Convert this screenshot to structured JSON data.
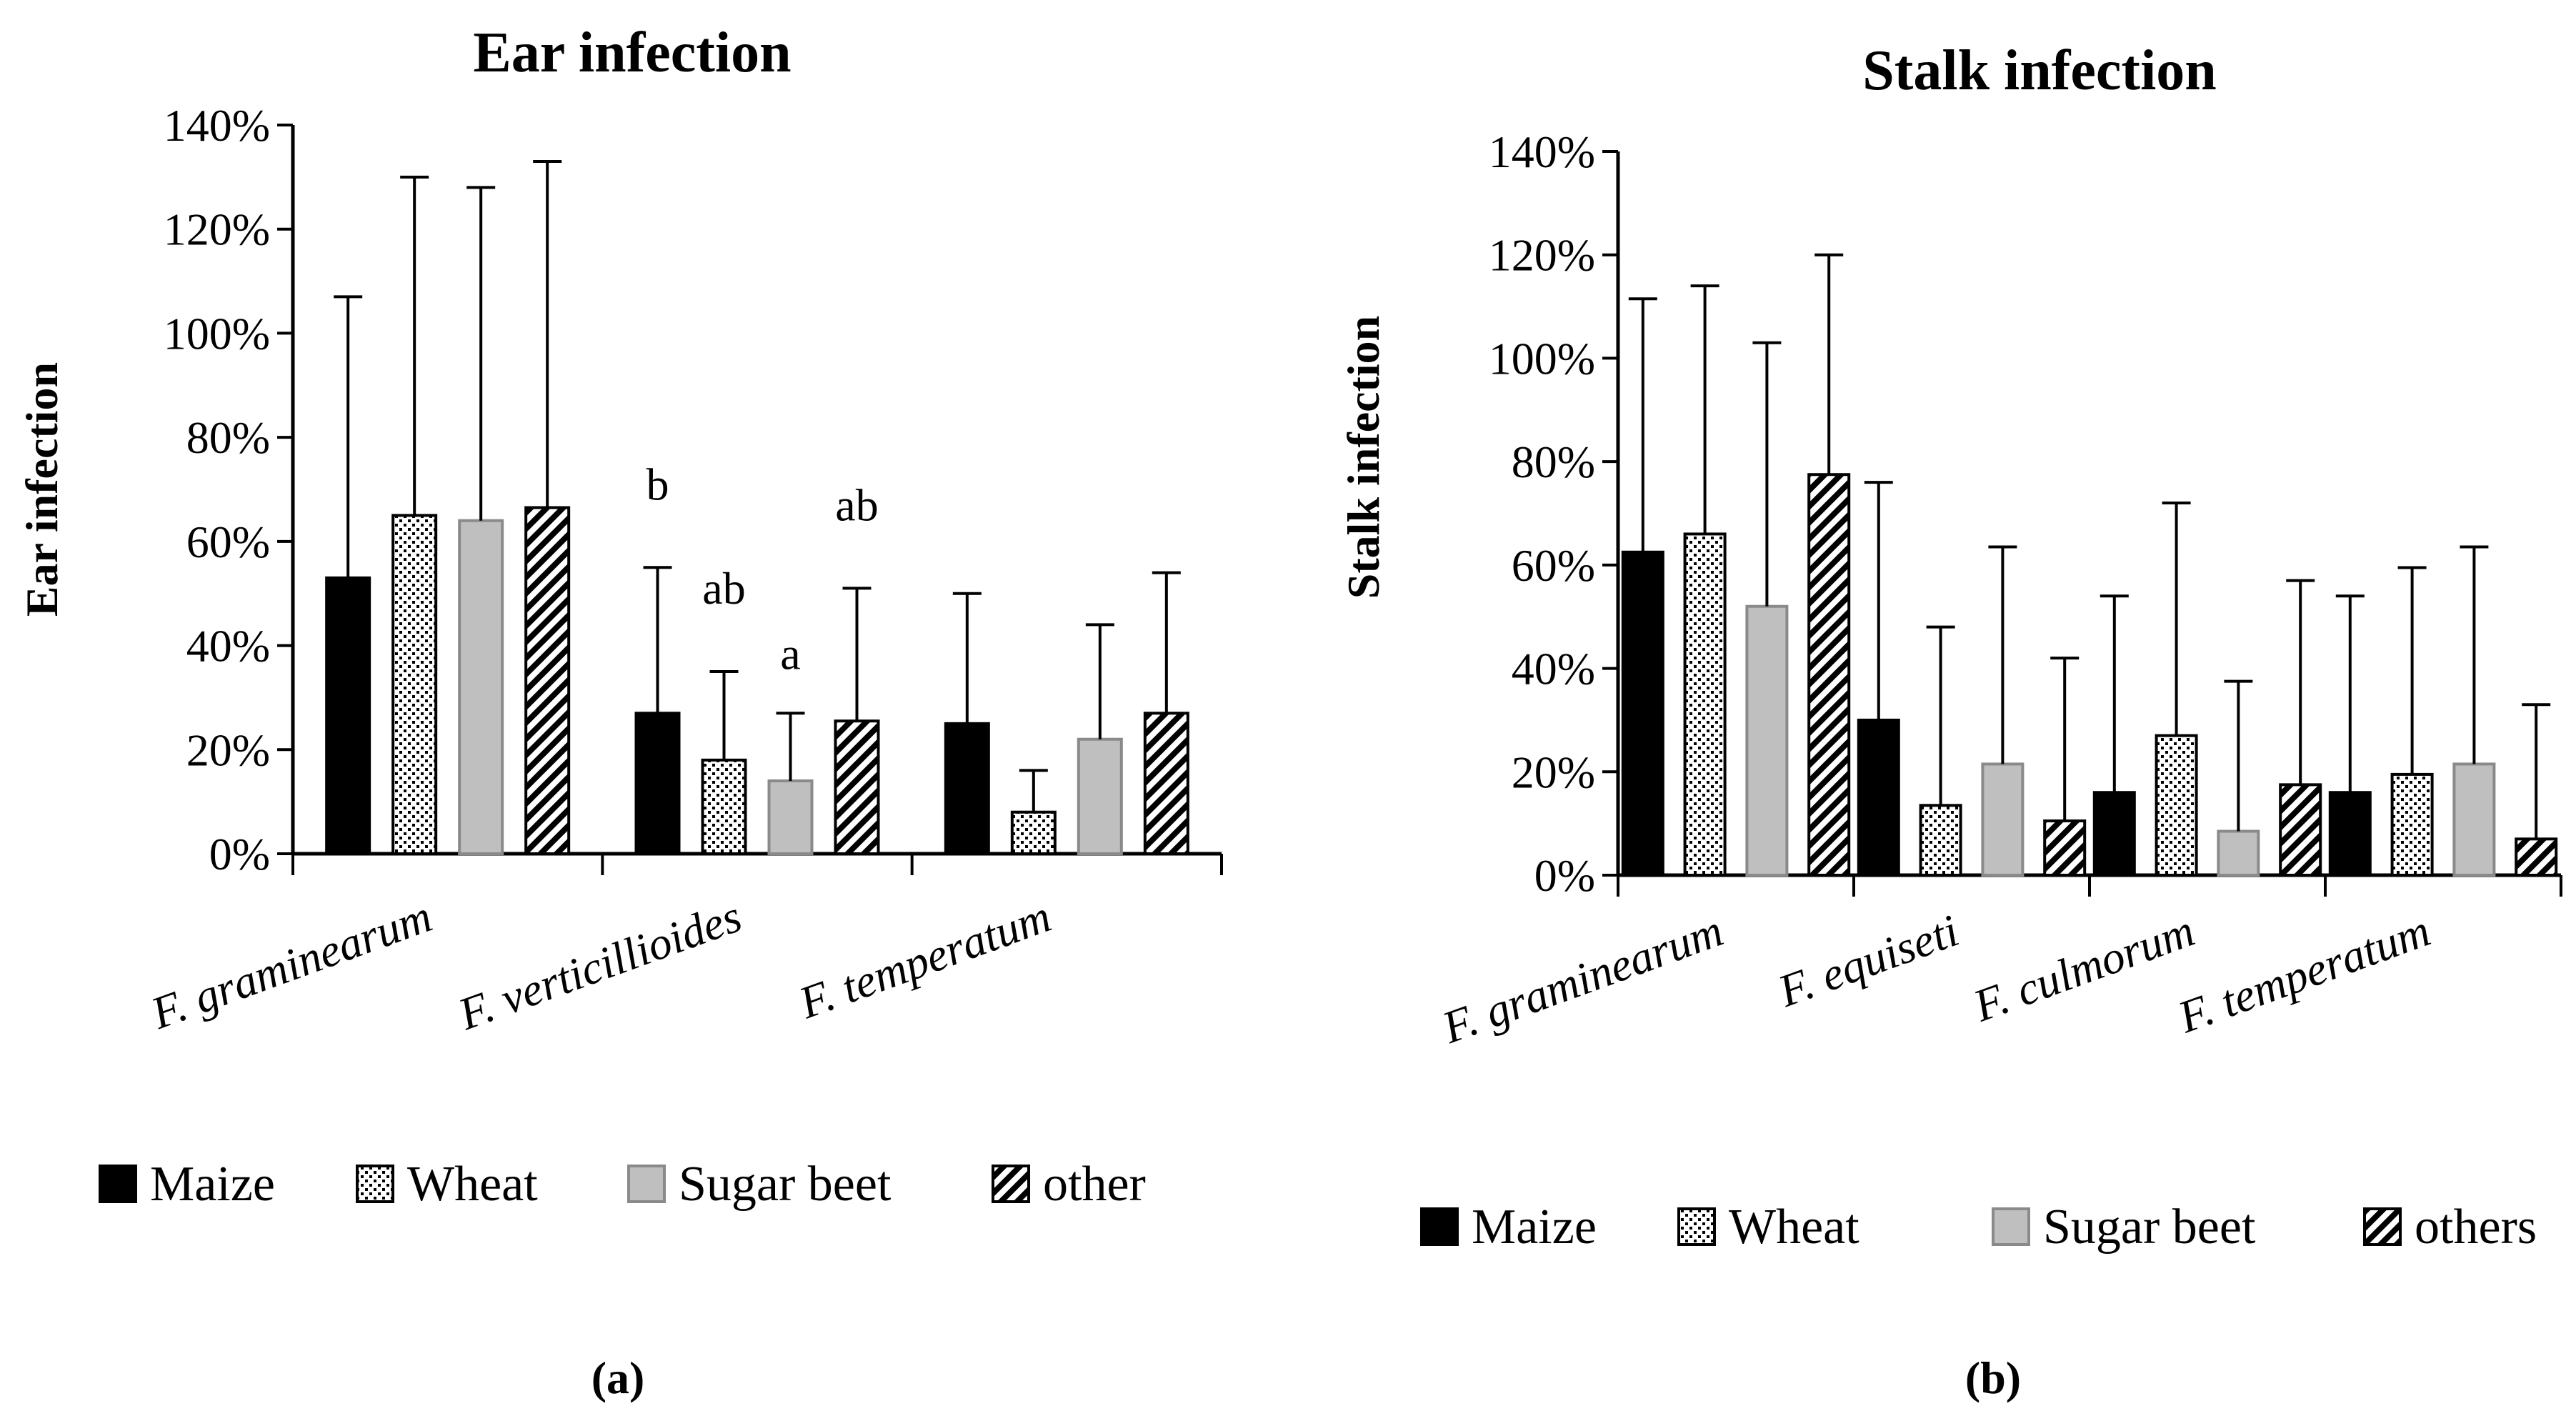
{
  "colors": {
    "maize": "#000000",
    "wheat": "#ffffff",
    "sugar_beet": "#bfbfbf",
    "other": "#000000",
    "axis": "#000000"
  },
  "chart_data": [
    {
      "type": "bar",
      "title": "Ear infection",
      "ylabel": "Ear infection",
      "xlabel": "",
      "ylim": [
        0,
        1.4
      ],
      "yticks": [
        0,
        0.2,
        0.4,
        0.6,
        0.8,
        1.0,
        1.2,
        1.4
      ],
      "yticklabels": [
        "0%",
        "20%",
        "40%",
        "60%",
        "80%",
        "100%",
        "120%",
        "140%"
      ],
      "categories": [
        "F. graminearum",
        "F. verticillioides",
        "F. temperatum"
      ],
      "series": [
        {
          "name": "Maize",
          "pattern": "solid",
          "values": [
            0.53,
            0.27,
            0.25
          ],
          "errors": [
            0.54,
            0.28,
            0.25
          ]
        },
        {
          "name": "Wheat",
          "pattern": "dots",
          "values": [
            0.65,
            0.18,
            0.08
          ],
          "errors": [
            0.65,
            0.17,
            0.08
          ]
        },
        {
          "name": "Sugar beet",
          "pattern": "grey",
          "values": [
            0.64,
            0.14,
            0.22
          ],
          "errors": [
            0.64,
            0.13,
            0.22
          ]
        },
        {
          "name": "other",
          "pattern": "diag",
          "values": [
            0.665,
            0.255,
            0.27
          ],
          "errors": [
            0.665,
            0.255,
            0.27
          ]
        }
      ],
      "annotations": [
        {
          "category": 1,
          "series": 0,
          "text": "b"
        },
        {
          "category": 1,
          "series": 1,
          "text": "ab"
        },
        {
          "category": 1,
          "series": 2,
          "text": "a"
        },
        {
          "category": 1,
          "series": 3,
          "text": "ab"
        }
      ],
      "legend": [
        "Maize",
        "Wheat",
        "Sugar beet",
        "other"
      ],
      "legend_position": "bottom",
      "panel_label": "(a)"
    },
    {
      "type": "bar",
      "title": "Stalk infection",
      "ylabel": "Stalk infection",
      "xlabel": "",
      "ylim": [
        0,
        1.4
      ],
      "yticks": [
        0,
        0.2,
        0.4,
        0.6,
        0.8,
        1.0,
        1.2,
        1.4
      ],
      "yticklabels": [
        "0%",
        "20%",
        "40%",
        "60%",
        "80%",
        "100%",
        "120%",
        "140%"
      ],
      "categories": [
        "F. graminearum",
        "F. equiseti",
        "F. culmorum",
        "F. temperatum"
      ],
      "series": [
        {
          "name": "Maize",
          "pattern": "solid",
          "values": [
            0.625,
            0.3,
            0.16,
            0.16
          ],
          "errors": [
            0.49,
            0.46,
            0.38,
            0.38
          ]
        },
        {
          "name": "Wheat",
          "pattern": "dots",
          "values": [
            0.66,
            0.135,
            0.27,
            0.195
          ],
          "errors": [
            0.48,
            0.345,
            0.45,
            0.4
          ]
        },
        {
          "name": "Sugar beet",
          "pattern": "grey",
          "values": [
            0.52,
            0.215,
            0.085,
            0.215
          ],
          "errors": [
            0.51,
            0.42,
            0.29,
            0.42
          ]
        },
        {
          "name": "others",
          "pattern": "diag",
          "values": [
            0.775,
            0.105,
            0.175,
            0.07
          ],
          "errors": [
            0.425,
            0.315,
            0.395,
            0.26
          ]
        }
      ],
      "annotations": [],
      "legend": [
        "Maize",
        "Wheat",
        "Sugar beet",
        "others"
      ],
      "legend_position": "bottom",
      "panel_label": "(b)"
    }
  ]
}
